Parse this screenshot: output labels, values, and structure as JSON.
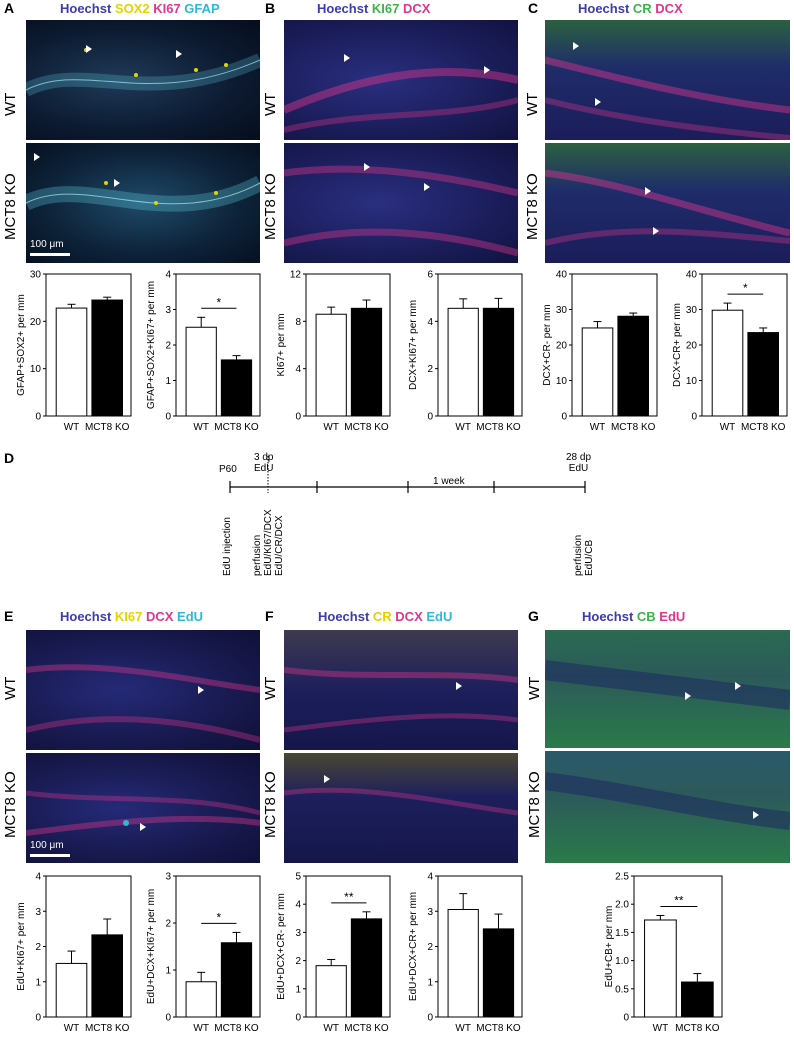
{
  "panels": {
    "A": {
      "letter": "A",
      "stains": [
        {
          "t": "Hoechst ",
          "c": "#3b3bb5"
        },
        {
          "t": "SOX2 ",
          "c": "#e3d400"
        },
        {
          "t": "KI67 ",
          "c": "#e0368c"
        },
        {
          "t": "GFAP",
          "c": "#2fb8d8"
        }
      ],
      "scale": "100 μm"
    },
    "B": {
      "letter": "B",
      "stains": [
        {
          "t": "Hoechst ",
          "c": "#3b3bb5"
        },
        {
          "t": "KI67 ",
          "c": "#3bb54a"
        },
        {
          "t": "DCX",
          "c": "#e0368c"
        }
      ]
    },
    "C": {
      "letter": "C",
      "stains": [
        {
          "t": "Hoechst ",
          "c": "#3b3bb5"
        },
        {
          "t": "CR ",
          "c": "#3bb54a"
        },
        {
          "t": "DCX",
          "c": "#e0368c"
        }
      ]
    },
    "D": {
      "letter": "D"
    },
    "E": {
      "letter": "E",
      "stains": [
        {
          "t": "Hoechst ",
          "c": "#3b3bb5"
        },
        {
          "t": "KI67 ",
          "c": "#e3d400"
        },
        {
          "t": "DCX ",
          "c": "#e0368c"
        },
        {
          "t": "EdU",
          "c": "#2fb8d8"
        }
      ],
      "scale": "100 μm"
    },
    "F": {
      "letter": "F",
      "stains": [
        {
          "t": "Hoechst ",
          "c": "#3b3bb5"
        },
        {
          "t": "CR ",
          "c": "#e3d400"
        },
        {
          "t": "DCX ",
          "c": "#e0368c"
        },
        {
          "t": "EdU",
          "c": "#2fb8d8"
        }
      ]
    },
    "G": {
      "letter": "G",
      "stains": [
        {
          "t": "Hoechst ",
          "c": "#3b3bb5"
        },
        {
          "t": "CB ",
          "c": "#3bb54a"
        },
        {
          "t": "EdU",
          "c": "#e0368c"
        }
      ]
    }
  },
  "row_labels": {
    "wt": "WT",
    "ko": "MCT8 KO"
  },
  "timeline": {
    "top_labels": [
      "P60",
      "3 dp\nEdU",
      "28 dp\nEdU"
    ],
    "week": "1 week",
    "bottom_labels": [
      "EdU injection",
      "perfusion\nEdU/KI67/DCX\nEdU/CR/DCX",
      "perfusion\nEdU/CB"
    ]
  },
  "chart_data": [
    {
      "id": "A1",
      "type": "bar",
      "categories": [
        "WT",
        "MCT8 KO"
      ],
      "values": [
        22.8,
        24.5
      ],
      "errors": [
        0.8,
        0.6
      ],
      "ylabel": "GFAP+SOX2+ per mm",
      "ylim": [
        0,
        30
      ],
      "yticks": [
        0,
        10,
        20,
        30
      ]
    },
    {
      "id": "A2",
      "type": "bar",
      "categories": [
        "WT",
        "MCT8 KO"
      ],
      "values": [
        2.5,
        1.58
      ],
      "errors": [
        0.28,
        0.12
      ],
      "ylabel": "GFAP+SOX2+KI67+ per mm",
      "ylim": [
        0,
        4
      ],
      "yticks": [
        0,
        1,
        2,
        3,
        4
      ],
      "significance": "*"
    },
    {
      "id": "B1",
      "type": "bar",
      "categories": [
        "WT",
        "MCT8 KO"
      ],
      "values": [
        8.6,
        9.1
      ],
      "errors": [
        0.6,
        0.7
      ],
      "ylabel": "KI67+ per mm",
      "ylim": [
        0,
        12
      ],
      "yticks": [
        0,
        4,
        8,
        12
      ]
    },
    {
      "id": "B2",
      "type": "bar",
      "categories": [
        "WT",
        "MCT8 KO"
      ],
      "values": [
        4.55,
        4.55
      ],
      "errors": [
        0.4,
        0.42
      ],
      "ylabel": "DCX+KI67+ per mm",
      "ylim": [
        0,
        6
      ],
      "yticks": [
        0,
        2,
        4,
        6
      ]
    },
    {
      "id": "C1",
      "type": "bar",
      "categories": [
        "WT",
        "MCT8 KO"
      ],
      "values": [
        24.8,
        28.1
      ],
      "errors": [
        1.8,
        0.9
      ],
      "ylabel": "DCX+CR- per mm",
      "ylim": [
        0,
        40
      ],
      "yticks": [
        0,
        10,
        20,
        30,
        40
      ]
    },
    {
      "id": "C2",
      "type": "bar",
      "categories": [
        "WT",
        "MCT8 KO"
      ],
      "values": [
        29.8,
        23.5
      ],
      "errors": [
        2.0,
        1.3
      ],
      "ylabel": "DCX+CR+ per mm",
      "ylim": [
        0,
        40
      ],
      "yticks": [
        0,
        10,
        20,
        30,
        40
      ],
      "significance": "*"
    },
    {
      "id": "E1",
      "type": "bar",
      "categories": [
        "WT",
        "MCT8 KO"
      ],
      "values": [
        1.52,
        2.33
      ],
      "errors": [
        0.35,
        0.45
      ],
      "ylabel": "EdU+KI67+ per mm",
      "ylim": [
        0,
        4
      ],
      "yticks": [
        0,
        1,
        2,
        3,
        4
      ]
    },
    {
      "id": "E2",
      "type": "bar",
      "categories": [
        "WT",
        "MCT8 KO"
      ],
      "values": [
        0.75,
        1.58
      ],
      "errors": [
        0.2,
        0.22
      ],
      "ylabel": "EdU+DCX+KI67+ per mm",
      "ylim": [
        0,
        3
      ],
      "yticks": [
        0,
        1,
        2,
        3
      ],
      "significance": "*"
    },
    {
      "id": "F1",
      "type": "bar",
      "categories": [
        "WT",
        "MCT8 KO"
      ],
      "values": [
        1.82,
        3.48
      ],
      "errors": [
        0.22,
        0.25
      ],
      "ylabel": "EdU+DCX+CR- per mm",
      "ylim": [
        0,
        5
      ],
      "yticks": [
        0,
        1,
        2,
        3,
        4,
        5
      ],
      "significance": "**"
    },
    {
      "id": "F2",
      "type": "bar",
      "categories": [
        "WT",
        "MCT8 KO"
      ],
      "values": [
        3.05,
        2.5
      ],
      "errors": [
        0.45,
        0.42
      ],
      "ylabel": "EdU+DCX+CR+ per mm",
      "ylim": [
        0,
        4
      ],
      "yticks": [
        0,
        1,
        2,
        3,
        4
      ]
    },
    {
      "id": "G1",
      "type": "bar",
      "categories": [
        "WT",
        "MCT8 KO"
      ],
      "values": [
        1.72,
        0.62
      ],
      "errors": [
        0.08,
        0.15
      ],
      "ylabel": "EdU+CB+ per mm",
      "ylim": [
        0,
        2.5
      ],
      "yticks": [
        0,
        0.5,
        1.0,
        1.5,
        2.0,
        2.5
      ],
      "tick_labels": [
        "0",
        "0.5",
        "1.0",
        "1.5",
        "2.0",
        "2.5"
      ],
      "significance": "**"
    }
  ]
}
